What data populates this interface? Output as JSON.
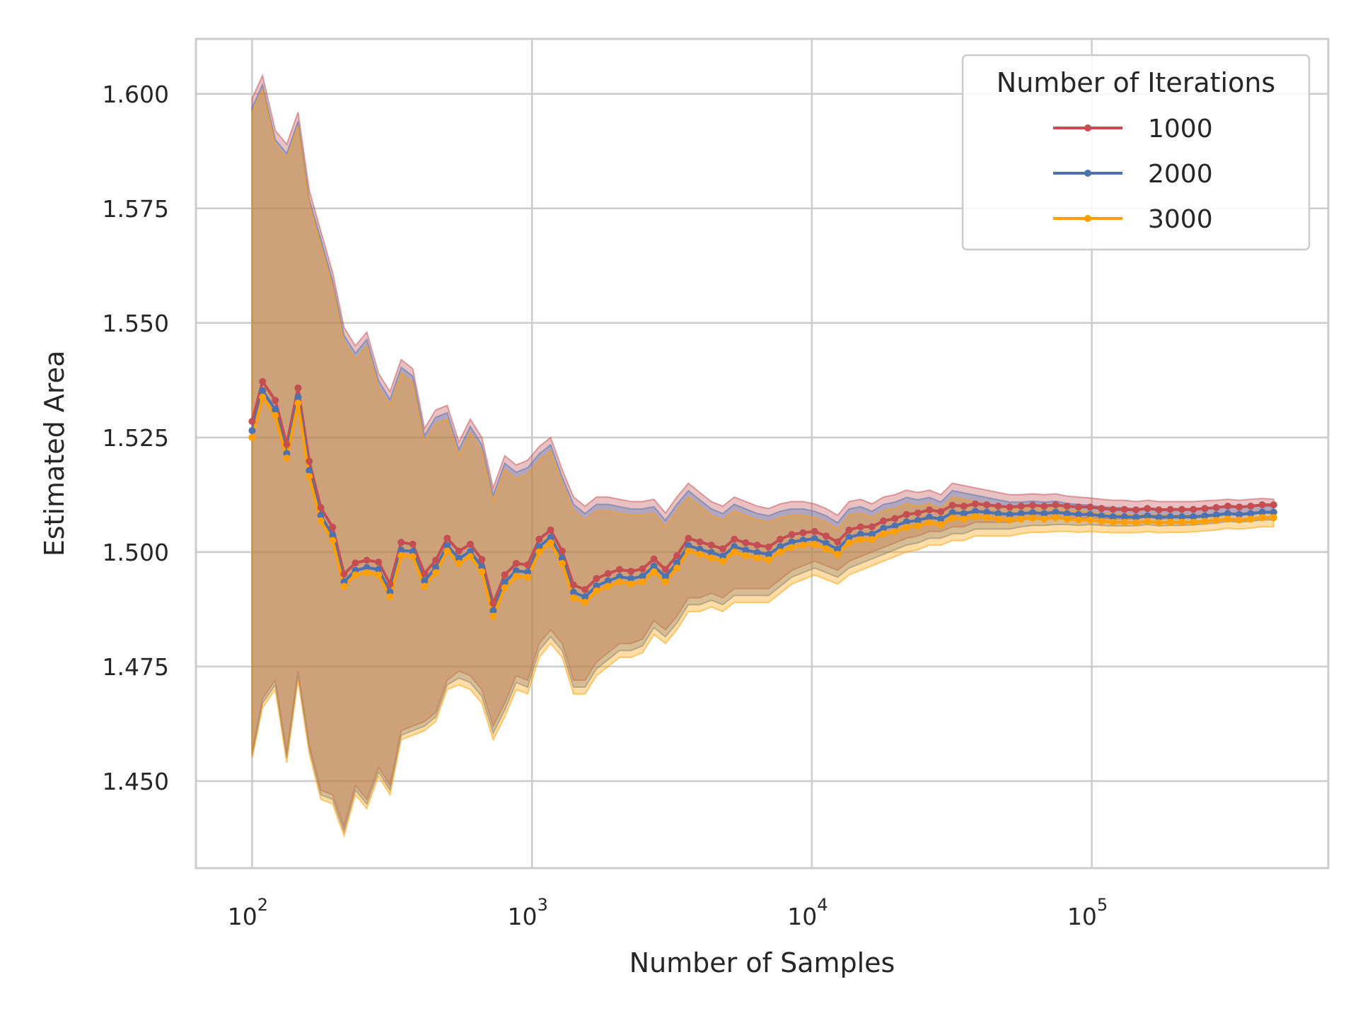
{
  "chart_data": {
    "type": "line",
    "xlabel": "Number of Samples",
    "ylabel": "Estimated Area",
    "x_scale": "log",
    "xlim": [
      63,
      700000
    ],
    "ylim": [
      1.431,
      1.612
    ],
    "grid": true,
    "x_ticks": [
      {
        "value": 100,
        "base": "10",
        "exp": "2"
      },
      {
        "value": 1000,
        "base": "10",
        "exp": "3"
      },
      {
        "value": 10000,
        "base": "10",
        "exp": "4"
      },
      {
        "value": 100000,
        "base": "10",
        "exp": "5"
      }
    ],
    "y_ticks": [
      {
        "value": 1.45,
        "label": "1.450"
      },
      {
        "value": 1.475,
        "label": "1.475"
      },
      {
        "value": 1.5,
        "label": "1.500"
      },
      {
        "value": 1.525,
        "label": "1.525"
      },
      {
        "value": 1.55,
        "label": "1.550"
      },
      {
        "value": 1.575,
        "label": "1.575"
      },
      {
        "value": 1.6,
        "label": "1.600"
      }
    ],
    "legend": {
      "title": "Number of Iterations",
      "position": "top-right"
    },
    "x": [
      100,
      109,
      121,
      133,
      146,
      160,
      176,
      194,
      213,
      234,
      257,
      283,
      311,
      341,
      375,
      413,
      453,
      498,
      548,
      602,
      662,
      727,
      799,
      878,
      965,
      1061,
      1166,
      1282,
      1408,
      1548,
      1701,
      1870,
      2055,
      2258,
      2482,
      2728,
      2998,
      3294,
      3621,
      3979,
      4373,
      4806,
      5282,
      5805,
      6380,
      7012,
      7706,
      8469,
      9307,
      10229,
      11242,
      12355,
      13579,
      14923,
      16401,
      18025,
      19810,
      21771,
      23927,
      26296,
      28900,
      31761,
      34906,
      38362,
      42160,
      46335,
      50922,
      55964,
      61505,
      67595,
      74288,
      81643,
      89726,
      98610,
      108374,
      119104,
      130897,
      143857,
      158100,
      173754,
      190957,
      209864,
      230643,
      253479,
      278576,
      306159,
      336472,
      369787,
      406399,
      446638
    ],
    "series": [
      {
        "name": "1000",
        "color": "#c44e52",
        "mean": [
          1.5285,
          1.5372,
          1.5331,
          1.5235,
          1.5358,
          1.5198,
          1.5097,
          1.5054,
          1.4952,
          1.4976,
          1.4982,
          1.4978,
          1.493,
          1.5021,
          1.5017,
          1.4953,
          1.4982,
          1.503,
          1.5002,
          1.5017,
          1.4984,
          1.4888,
          1.495,
          1.4975,
          1.4972,
          1.5028,
          1.5048,
          1.5002,
          1.4928,
          1.4918,
          1.4942,
          1.4953,
          1.4962,
          1.4958,
          1.4963,
          1.4985,
          1.4962,
          1.4992,
          1.503,
          1.5022,
          1.5015,
          1.5007,
          1.5028,
          1.502,
          1.5015,
          1.5011,
          1.5028,
          1.5038,
          1.5042,
          1.5045,
          1.5035,
          1.5022,
          1.5048,
          1.5055,
          1.5055,
          1.5068,
          1.5073,
          1.5082,
          1.5085,
          1.5092,
          1.5088,
          1.5102,
          1.51,
          1.5105,
          1.5103,
          1.51,
          1.5098,
          1.51,
          1.5102,
          1.51,
          1.5103,
          1.51,
          1.5098,
          1.5098,
          1.5095,
          1.5093,
          1.5093,
          1.5092,
          1.5095,
          1.5092,
          1.5093,
          1.5093,
          1.5093,
          1.5095,
          1.5097,
          1.51,
          1.5098,
          1.51,
          1.5103,
          1.5103
        ],
        "upper": [
          1.599,
          1.604,
          1.592,
          1.589,
          1.596,
          1.579,
          1.57,
          1.561,
          1.549,
          1.545,
          1.548,
          1.539,
          1.535,
          1.542,
          1.54,
          1.527,
          1.531,
          1.532,
          1.524,
          1.529,
          1.525,
          1.514,
          1.521,
          1.519,
          1.52,
          1.523,
          1.525,
          1.518,
          1.512,
          1.51,
          1.512,
          1.512,
          1.5115,
          1.511,
          1.511,
          1.5115,
          1.5085,
          1.512,
          1.515,
          1.513,
          1.511,
          1.51,
          1.512,
          1.511,
          1.51,
          1.5095,
          1.5105,
          1.511,
          1.511,
          1.5105,
          1.5095,
          1.508,
          1.511,
          1.5115,
          1.5105,
          1.512,
          1.5125,
          1.5135,
          1.513,
          1.5135,
          1.5125,
          1.515,
          1.5145,
          1.514,
          1.5135,
          1.513,
          1.5125,
          1.5125,
          1.5127,
          1.5125,
          1.5127,
          1.5122,
          1.512,
          1.5118,
          1.5115,
          1.5113,
          1.5113,
          1.511,
          1.5113,
          1.511,
          1.511,
          1.511,
          1.511,
          1.5112,
          1.5113,
          1.5115,
          1.5113,
          1.5115,
          1.5117,
          1.5115
        ],
        "lower": [
          1.456,
          1.468,
          1.472,
          1.456,
          1.474,
          1.458,
          1.448,
          1.447,
          1.44,
          1.449,
          1.446,
          1.453,
          1.449,
          1.461,
          1.462,
          1.463,
          1.465,
          1.472,
          1.474,
          1.473,
          1.47,
          1.462,
          1.467,
          1.473,
          1.472,
          1.48,
          1.483,
          1.48,
          1.472,
          1.472,
          1.476,
          1.478,
          1.48,
          1.48,
          1.481,
          1.485,
          1.483,
          1.486,
          1.49,
          1.49,
          1.491,
          1.49,
          1.492,
          1.492,
          1.492,
          1.492,
          1.494,
          1.496,
          1.497,
          1.498,
          1.497,
          1.496,
          1.498,
          1.499,
          1.5,
          1.501,
          1.502,
          1.503,
          1.5035,
          1.5045,
          1.5045,
          1.5055,
          1.5055,
          1.5065,
          1.5065,
          1.5065,
          1.5065,
          1.507,
          1.5073,
          1.5073,
          1.5075,
          1.5075,
          1.5073,
          1.5075,
          1.5073,
          1.5072,
          1.5072,
          1.5072,
          1.5075,
          1.5072,
          1.5073,
          1.5073,
          1.5074,
          1.5076,
          1.5078,
          1.5082,
          1.508,
          1.5082,
          1.5085,
          1.5085
        ]
      },
      {
        "name": "2000",
        "color": "#4c72b0",
        "mean": [
          1.5265,
          1.5352,
          1.5311,
          1.5215,
          1.5338,
          1.5178,
          1.508,
          1.5036,
          1.4935,
          1.496,
          1.4966,
          1.4962,
          1.4913,
          1.5004,
          1.5001,
          1.4937,
          1.4966,
          1.5014,
          1.4986,
          1.5001,
          1.4968,
          1.4872,
          1.4934,
          1.4959,
          1.4956,
          1.5012,
          1.5032,
          1.4986,
          1.4912,
          1.4902,
          1.4926,
          1.4937,
          1.4946,
          1.4942,
          1.4947,
          1.4969,
          1.4946,
          1.4976,
          1.5014,
          1.5006,
          1.4999,
          1.4991,
          1.5012,
          1.5004,
          1.4999,
          1.4995,
          1.5012,
          1.5022,
          1.5026,
          1.5029,
          1.5019,
          1.5006,
          1.5032,
          1.5039,
          1.5039,
          1.5052,
          1.5057,
          1.5066,
          1.5069,
          1.5076,
          1.5072,
          1.5086,
          1.5084,
          1.5089,
          1.5087,
          1.5084,
          1.5082,
          1.5084,
          1.5086,
          1.5084,
          1.5087,
          1.5084,
          1.5082,
          1.5082,
          1.5079,
          1.5077,
          1.5077,
          1.5076,
          1.5079,
          1.5076,
          1.5077,
          1.5077,
          1.5077,
          1.5079,
          1.5081,
          1.5084,
          1.5082,
          1.5084,
          1.5087,
          1.5087
        ],
        "upper": [
          1.597,
          1.602,
          1.59,
          1.587,
          1.594,
          1.577,
          1.5683,
          1.5592,
          1.5473,
          1.5434,
          1.5464,
          1.5374,
          1.5333,
          1.5403,
          1.5384,
          1.5254,
          1.5294,
          1.5304,
          1.5224,
          1.5274,
          1.5234,
          1.5124,
          1.5194,
          1.5174,
          1.5184,
          1.5214,
          1.5234,
          1.5164,
          1.5104,
          1.5084,
          1.5104,
          1.5104,
          1.5099,
          1.5094,
          1.5094,
          1.5099,
          1.5069,
          1.5104,
          1.5134,
          1.5114,
          1.5094,
          1.5084,
          1.5104,
          1.5094,
          1.5084,
          1.5079,
          1.5089,
          1.5094,
          1.5094,
          1.5089,
          1.5079,
          1.5064,
          1.5094,
          1.5099,
          1.5089,
          1.5104,
          1.5109,
          1.5119,
          1.5114,
          1.5119,
          1.5109,
          1.5134,
          1.5129,
          1.5124,
          1.5119,
          1.5114,
          1.5109,
          1.5109,
          1.5111,
          1.5109,
          1.5111,
          1.5106,
          1.5104,
          1.5102,
          1.5099,
          1.5097,
          1.5097,
          1.5094,
          1.5097,
          1.5094,
          1.5094,
          1.5094,
          1.5094,
          1.5096,
          1.5097,
          1.5099,
          1.5097,
          1.5099,
          1.5101,
          1.5099
        ],
        "lower": [
          1.4555,
          1.467,
          1.471,
          1.455,
          1.473,
          1.457,
          1.447,
          1.446,
          1.439,
          1.448,
          1.445,
          1.452,
          1.448,
          1.46,
          1.461,
          1.462,
          1.464,
          1.471,
          1.4725,
          1.4715,
          1.4685,
          1.4605,
          1.4655,
          1.4715,
          1.4705,
          1.4785,
          1.4815,
          1.4785,
          1.4705,
          1.4705,
          1.4745,
          1.4765,
          1.4785,
          1.4785,
          1.4795,
          1.4835,
          1.4815,
          1.4845,
          1.4885,
          1.4885,
          1.4895,
          1.4885,
          1.4905,
          1.4905,
          1.4905,
          1.4905,
          1.4925,
          1.4945,
          1.4955,
          1.4965,
          1.4955,
          1.4945,
          1.4965,
          1.4975,
          1.4985,
          1.4995,
          1.5005,
          1.5015,
          1.502,
          1.503,
          1.503,
          1.504,
          1.504,
          1.505,
          1.505,
          1.505,
          1.505,
          1.5055,
          1.5058,
          1.5058,
          1.506,
          1.506,
          1.5058,
          1.506,
          1.5058,
          1.5057,
          1.5057,
          1.5057,
          1.506,
          1.5057,
          1.5058,
          1.5058,
          1.5059,
          1.5061,
          1.5063,
          1.5067,
          1.5065,
          1.5067,
          1.507,
          1.507
        ]
      },
      {
        "name": "3000",
        "color": "#ff9f00",
        "mean": [
          1.525,
          1.5338,
          1.5298,
          1.5205,
          1.5325,
          1.5165,
          1.5068,
          1.5025,
          1.4925,
          1.495,
          1.4955,
          1.495,
          1.4902,
          1.4992,
          1.499,
          1.4925,
          1.4955,
          1.5002,
          1.4975,
          1.499,
          1.4957,
          1.486,
          1.4922,
          1.4947,
          1.4945,
          1.5,
          1.502,
          1.4975,
          1.49,
          1.489,
          1.4915,
          1.4925,
          1.4935,
          1.493,
          1.4935,
          1.4957,
          1.4935,
          1.4965,
          1.5002,
          1.4995,
          1.4987,
          1.498,
          1.5,
          1.4992,
          1.4987,
          1.4983,
          1.5,
          1.501,
          1.5015,
          1.5017,
          1.5007,
          1.4995,
          1.502,
          1.5027,
          1.5027,
          1.504,
          1.5045,
          1.5054,
          1.5057,
          1.5064,
          1.506,
          1.5074,
          1.5072,
          1.5077,
          1.5075,
          1.5072,
          1.507,
          1.5072,
          1.5074,
          1.5072,
          1.5075,
          1.5072,
          1.507,
          1.507,
          1.5067,
          1.5065,
          1.5065,
          1.5064,
          1.5067,
          1.5064,
          1.5065,
          1.5065,
          1.5065,
          1.5067,
          1.5069,
          1.5072,
          1.507,
          1.5072,
          1.5075,
          1.5075
        ],
        "upper": [
          1.596,
          1.601,
          1.589,
          1.586,
          1.593,
          1.576,
          1.567,
          1.558,
          1.546,
          1.542,
          1.545,
          1.536,
          1.532,
          1.539,
          1.537,
          1.524,
          1.528,
          1.529,
          1.521,
          1.526,
          1.522,
          1.511,
          1.518,
          1.516,
          1.517,
          1.52,
          1.522,
          1.515,
          1.509,
          1.507,
          1.509,
          1.509,
          1.5085,
          1.508,
          1.508,
          1.5085,
          1.5055,
          1.509,
          1.512,
          1.51,
          1.508,
          1.507,
          1.509,
          1.508,
          1.507,
          1.5065,
          1.5075,
          1.508,
          1.508,
          1.5075,
          1.5065,
          1.505,
          1.508,
          1.5085,
          1.5075,
          1.509,
          1.5095,
          1.5105,
          1.51,
          1.5105,
          1.5095,
          1.512,
          1.5115,
          1.511,
          1.5105,
          1.51,
          1.5095,
          1.5095,
          1.5097,
          1.5095,
          1.5097,
          1.5092,
          1.509,
          1.5088,
          1.5085,
          1.5083,
          1.5083,
          1.508,
          1.5083,
          1.508,
          1.508,
          1.508,
          1.508,
          1.5082,
          1.5083,
          1.5085,
          1.5083,
          1.5085,
          1.5087,
          1.5085
        ],
        "lower": [
          1.455,
          1.466,
          1.47,
          1.454,
          1.472,
          1.456,
          1.446,
          1.445,
          1.438,
          1.447,
          1.444,
          1.451,
          1.447,
          1.459,
          1.46,
          1.461,
          1.463,
          1.47,
          1.471,
          1.47,
          1.467,
          1.459,
          1.464,
          1.47,
          1.469,
          1.477,
          1.48,
          1.477,
          1.469,
          1.469,
          1.473,
          1.475,
          1.477,
          1.477,
          1.478,
          1.482,
          1.48,
          1.483,
          1.487,
          1.487,
          1.488,
          1.487,
          1.489,
          1.489,
          1.489,
          1.489,
          1.491,
          1.493,
          1.494,
          1.495,
          1.494,
          1.493,
          1.495,
          1.496,
          1.497,
          1.498,
          1.499,
          1.5,
          1.5005,
          1.5015,
          1.5015,
          1.5025,
          1.5025,
          1.5035,
          1.5035,
          1.5035,
          1.5035,
          1.504,
          1.5043,
          1.5043,
          1.5045,
          1.5045,
          1.5043,
          1.5045,
          1.5043,
          1.5042,
          1.5042,
          1.5042,
          1.5045,
          1.5042,
          1.5043,
          1.5043,
          1.5044,
          1.5046,
          1.5048,
          1.5052,
          1.505,
          1.5052,
          1.5055,
          1.5055
        ]
      }
    ]
  }
}
